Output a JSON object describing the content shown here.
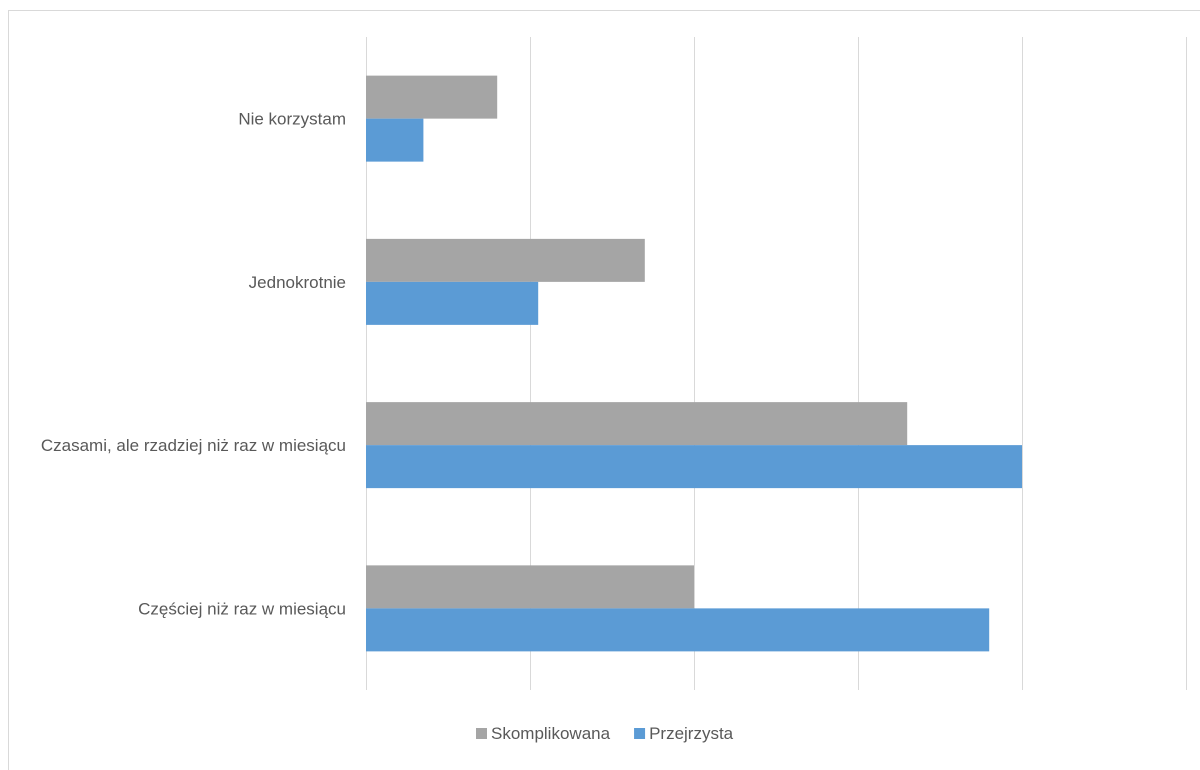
{
  "chart_data": {
    "type": "bar",
    "orientation": "horizontal",
    "categories": [
      "Nie korzystam",
      "Jednokrotnie",
      "Czasami, ale rzadziej niż raz w miesiącu",
      "Częściej niż raz w miesiącu"
    ],
    "series": [
      {
        "name": "Skomplikowana",
        "color": "#a5a5a5",
        "values": [
          8,
          17,
          33,
          20
        ]
      },
      {
        "name": "Przejrzysta",
        "color": "#5b9bd5",
        "values": [
          3.5,
          10.5,
          40,
          38
        ]
      }
    ],
    "xlim": [
      0,
      50
    ],
    "x_gridlines": [
      0,
      10,
      20,
      30,
      40,
      50
    ],
    "x_tick_labels_visible": false,
    "grid": true,
    "legend": "bottom"
  }
}
